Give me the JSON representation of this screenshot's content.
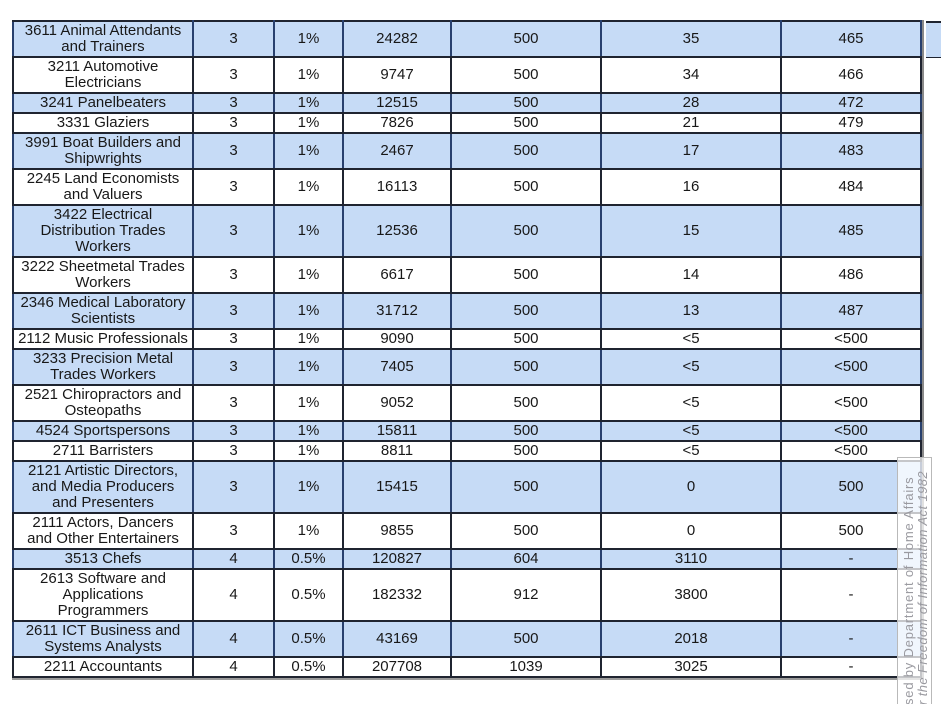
{
  "table": {
    "rows": [
      {
        "shaded": true,
        "cells": [
          "3611 Animal Attendants and Trainers",
          "3",
          "1%",
          "24282",
          "500",
          "35",
          "465"
        ]
      },
      {
        "shaded": false,
        "cells": [
          "3211 Automotive Electricians",
          "3",
          "1%",
          "9747",
          "500",
          "34",
          "466"
        ]
      },
      {
        "shaded": true,
        "cells": [
          "3241 Panelbeaters",
          "3",
          "1%",
          "12515",
          "500",
          "28",
          "472"
        ]
      },
      {
        "shaded": false,
        "cells": [
          "3331 Glaziers",
          "3",
          "1%",
          "7826",
          "500",
          "21",
          "479"
        ]
      },
      {
        "shaded": true,
        "cells": [
          "3991 Boat Builders and Shipwrights",
          "3",
          "1%",
          "2467",
          "500",
          "17",
          "483"
        ]
      },
      {
        "shaded": false,
        "cells": [
          "2245 Land Economists and Valuers",
          "3",
          "1%",
          "16113",
          "500",
          "16",
          "484"
        ]
      },
      {
        "shaded": true,
        "cells": [
          "3422 Electrical Distribution Trades Workers",
          "3",
          "1%",
          "12536",
          "500",
          "15",
          "485"
        ]
      },
      {
        "shaded": false,
        "cells": [
          "3222 Sheetmetal Trades Workers",
          "3",
          "1%",
          "6617",
          "500",
          "14",
          "486"
        ]
      },
      {
        "shaded": true,
        "cells": [
          "2346 Medical Laboratory Scientists",
          "3",
          "1%",
          "31712",
          "500",
          "13",
          "487"
        ]
      },
      {
        "shaded": false,
        "cells": [
          "2112 Music Professionals",
          "3",
          "1%",
          "9090",
          "500",
          "<5",
          "<500"
        ]
      },
      {
        "shaded": true,
        "cells": [
          "3233 Precision Metal Trades Workers",
          "3",
          "1%",
          "7405",
          "500",
          "<5",
          "<500"
        ]
      },
      {
        "shaded": false,
        "cells": [
          "2521 Chiropractors and Osteopaths",
          "3",
          "1%",
          "9052",
          "500",
          "<5",
          "<500"
        ]
      },
      {
        "shaded": true,
        "cells": [
          "4524 Sportspersons",
          "3",
          "1%",
          "15811",
          "500",
          "<5",
          "<500"
        ]
      },
      {
        "shaded": false,
        "cells": [
          "2711 Barristers",
          "3",
          "1%",
          "8811",
          "500",
          "<5",
          "<500"
        ]
      },
      {
        "shaded": true,
        "cells": [
          "2121 Artistic Directors, and Media Producers and Presenters",
          "3",
          "1%",
          "15415",
          "500",
          "0",
          "500"
        ]
      },
      {
        "shaded": false,
        "cells": [
          "2111 Actors, Dancers and Other Entertainers",
          "3",
          "1%",
          "9855",
          "500",
          "0",
          "500"
        ]
      },
      {
        "shaded": true,
        "cells": [
          "3513 Chefs",
          "4",
          "0.5%",
          "120827",
          "604",
          "3110",
          "-"
        ]
      },
      {
        "shaded": false,
        "cells": [
          "2613 Software and Applications Programmers",
          "4",
          "0.5%",
          "182332",
          "912",
          "3800",
          "-"
        ]
      },
      {
        "shaded": true,
        "cells": [
          "2611 ICT Business and Systems Analysts",
          "4",
          "0.5%",
          "43169",
          "500",
          "2018",
          "-"
        ]
      },
      {
        "shaded": false,
        "cells": [
          "2211 Accountants",
          "4",
          "0.5%",
          "207708",
          "1039",
          "3025",
          "-"
        ]
      }
    ]
  },
  "watermark": {
    "line1": "sed by Department of Home Affairs",
    "line2": "r the Freedom of Information Act 1982"
  },
  "colors": {
    "row_shaded": "#c6dbf6",
    "table_border": "#1f2430",
    "watermark_text": "#9a9aa0"
  }
}
